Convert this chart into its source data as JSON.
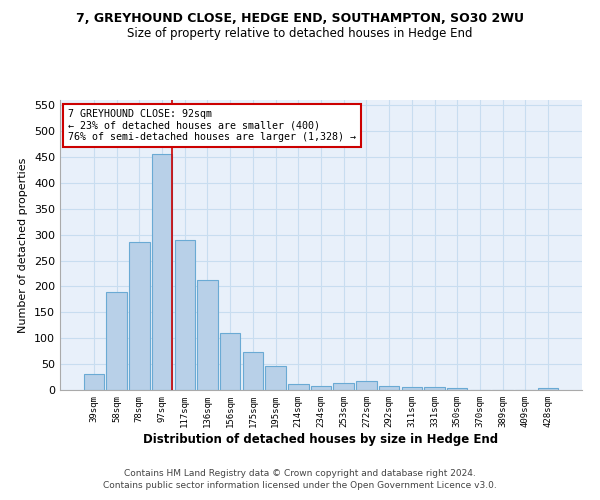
{
  "title1": "7, GREYHOUND CLOSE, HEDGE END, SOUTHAMPTON, SO30 2WU",
  "title2": "Size of property relative to detached houses in Hedge End",
  "xlabel": "Distribution of detached houses by size in Hedge End",
  "ylabel": "Number of detached properties",
  "categories": [
    "39sqm",
    "58sqm",
    "78sqm",
    "97sqm",
    "117sqm",
    "136sqm",
    "156sqm",
    "175sqm",
    "195sqm",
    "214sqm",
    "234sqm",
    "253sqm",
    "272sqm",
    "292sqm",
    "311sqm",
    "331sqm",
    "350sqm",
    "370sqm",
    "389sqm",
    "409sqm",
    "428sqm"
  ],
  "values": [
    30,
    190,
    285,
    455,
    290,
    213,
    110,
    73,
    47,
    12,
    8,
    13,
    18,
    8,
    6,
    5,
    4,
    0,
    0,
    0,
    4
  ],
  "bar_color": "#b8d0e8",
  "bar_edge_color": "#6aaad4",
  "grid_color": "#c8ddf0",
  "background_color": "#e8f0fa",
  "red_line_x": 3.42,
  "annotation_text": "7 GREYHOUND CLOSE: 92sqm\n← 23% of detached houses are smaller (400)\n76% of semi-detached houses are larger (1,328) →",
  "annotation_box_color": "#ffffff",
  "annotation_border_color": "#cc0000",
  "footer1": "Contains HM Land Registry data © Crown copyright and database right 2024.",
  "footer2": "Contains public sector information licensed under the Open Government Licence v3.0.",
  "ylim": [
    0,
    560
  ],
  "yticks": [
    0,
    50,
    100,
    150,
    200,
    250,
    300,
    350,
    400,
    450,
    500,
    550
  ]
}
